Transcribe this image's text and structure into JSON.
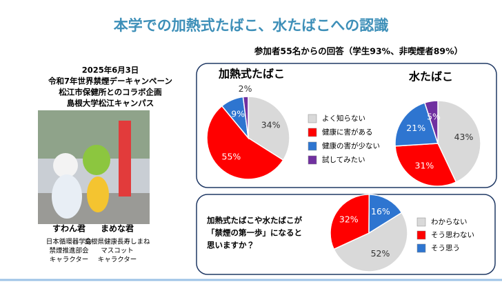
{
  "title": "本学での加熱式たばこ、水たばこへの認識",
  "respondents": "参加者55名からの回答（学生93%、非喫煙者89%）",
  "event": {
    "date": "2025年6月3日",
    "lines": [
      "令和7年世界禁煙デーキャンペーン",
      "松江市保健所とのコラボ企画",
      "島根大学松江キャンパス"
    ]
  },
  "characters": [
    {
      "name": "すわん君",
      "desc": [
        "日本循環器学会",
        "禁煙推進部会",
        "キャラクター"
      ]
    },
    {
      "name": "まめな君",
      "desc": [
        "島根県健康長寿しまね",
        "マスコット",
        "キャラクター"
      ]
    }
  ],
  "chart_data": [
    {
      "type": "pie",
      "title": "加熱式たばこ",
      "categories": [
        "よく知らない",
        "健康に害がある",
        "健康の害が少ない",
        "試してみたい"
      ],
      "values": [
        34,
        55,
        9,
        2
      ],
      "value_labels": [
        "34%",
        "55%",
        "9%",
        "2%"
      ],
      "colors": [
        "#d9d9d9",
        "#ff0000",
        "#2e75d0",
        "#7030a0"
      ],
      "start_angle": 0
    },
    {
      "type": "pie",
      "title": "水たばこ",
      "values": [
        43,
        31,
        21,
        5
      ],
      "value_labels": [
        "43%",
        "31%",
        "21%",
        "5%"
      ],
      "colors": [
        "#d9d9d9",
        "#ff0000",
        "#2e75d0",
        "#7030a0"
      ],
      "start_angle": 0
    },
    {
      "type": "pie",
      "question": [
        "加熱式たばこや水たばこが",
        "「禁煙の第一歩」になると",
        "思いますか？"
      ],
      "categories": [
        "わからない",
        "そう思わない",
        "そう思う"
      ],
      "values": [
        52,
        32,
        16
      ],
      "value_labels": [
        "52%",
        "32%",
        "16%"
      ],
      "colors": [
        "#d9d9d9",
        "#ff0000",
        "#2e75d0"
      ],
      "start_angle": 58
    }
  ]
}
